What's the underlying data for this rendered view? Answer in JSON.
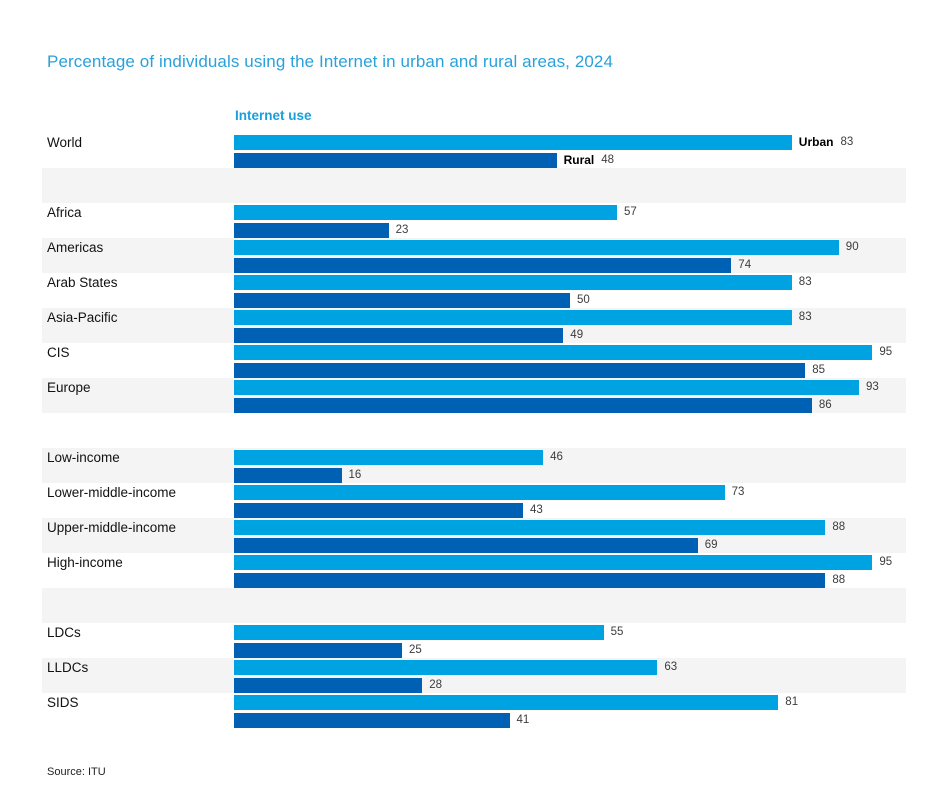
{
  "title": "Percentage of individuals using the Internet in urban and rural areas, 2024",
  "chart_header": "Internet use",
  "source": "Source: ITU",
  "colors": {
    "urban_bar": "#00A3E1",
    "rural_bar": "#0060B4",
    "title_text": "#29A1DB",
    "header_text": "#18A0DD",
    "row_stripe": "#F4F4F4"
  },
  "series_labels": {
    "urban": "Urban",
    "rural": "Rural"
  },
  "chart_data": {
    "type": "bar",
    "orientation": "horizontal",
    "title": "Percentage of individuals using the Internet in urban and rural areas, 2024",
    "xlabel": "",
    "ylabel": "",
    "xlim": [
      0,
      100
    ],
    "grid": false,
    "legend": [
      "Urban",
      "Rural"
    ],
    "legend_position": "inline-first-row",
    "value_labels": true,
    "categories": [
      "World",
      "Africa",
      "Americas",
      "Arab States",
      "Asia-Pacific",
      "CIS",
      "Europe",
      "Low-income",
      "Lower-middle-income",
      "Upper-middle-income",
      "High-income",
      "LDCs",
      "LLDCs",
      "SIDS"
    ],
    "series": [
      {
        "name": "Urban",
        "values": [
          83,
          57,
          90,
          83,
          83,
          95,
          93,
          46,
          73,
          88,
          95,
          55,
          63,
          81
        ]
      },
      {
        "name": "Rural",
        "values": [
          48,
          23,
          74,
          50,
          49,
          85,
          86,
          16,
          43,
          69,
          88,
          25,
          28,
          41
        ]
      }
    ]
  },
  "rows": [
    {
      "type": "data",
      "label": "World",
      "urban": 83,
      "rural": 48,
      "inline_series_labels": true
    },
    {
      "type": "spacer"
    },
    {
      "type": "data",
      "label": "Africa",
      "urban": 57,
      "rural": 23
    },
    {
      "type": "data",
      "label": "Americas",
      "urban": 90,
      "rural": 74
    },
    {
      "type": "data",
      "label": "Arab States",
      "urban": 83,
      "rural": 50
    },
    {
      "type": "data",
      "label": "Asia-Pacific",
      "urban": 83,
      "rural": 49
    },
    {
      "type": "data",
      "label": "CIS",
      "urban": 95,
      "rural": 85
    },
    {
      "type": "data",
      "label": "Europe",
      "urban": 93,
      "rural": 86
    },
    {
      "type": "spacer"
    },
    {
      "type": "data",
      "label": "Low-income",
      "urban": 46,
      "rural": 16
    },
    {
      "type": "data",
      "label": "Lower-middle-income",
      "urban": 73,
      "rural": 43
    },
    {
      "type": "data",
      "label": "Upper-middle-income",
      "urban": 88,
      "rural": 69
    },
    {
      "type": "data",
      "label": "High-income",
      "urban": 95,
      "rural": 88
    },
    {
      "type": "spacer"
    },
    {
      "type": "data",
      "label": "LDCs",
      "urban": 55,
      "rural": 25
    },
    {
      "type": "data",
      "label": "LLDCs",
      "urban": 63,
      "rural": 28
    },
    {
      "type": "data",
      "label": "SIDS",
      "urban": 81,
      "rural": 41
    }
  ]
}
